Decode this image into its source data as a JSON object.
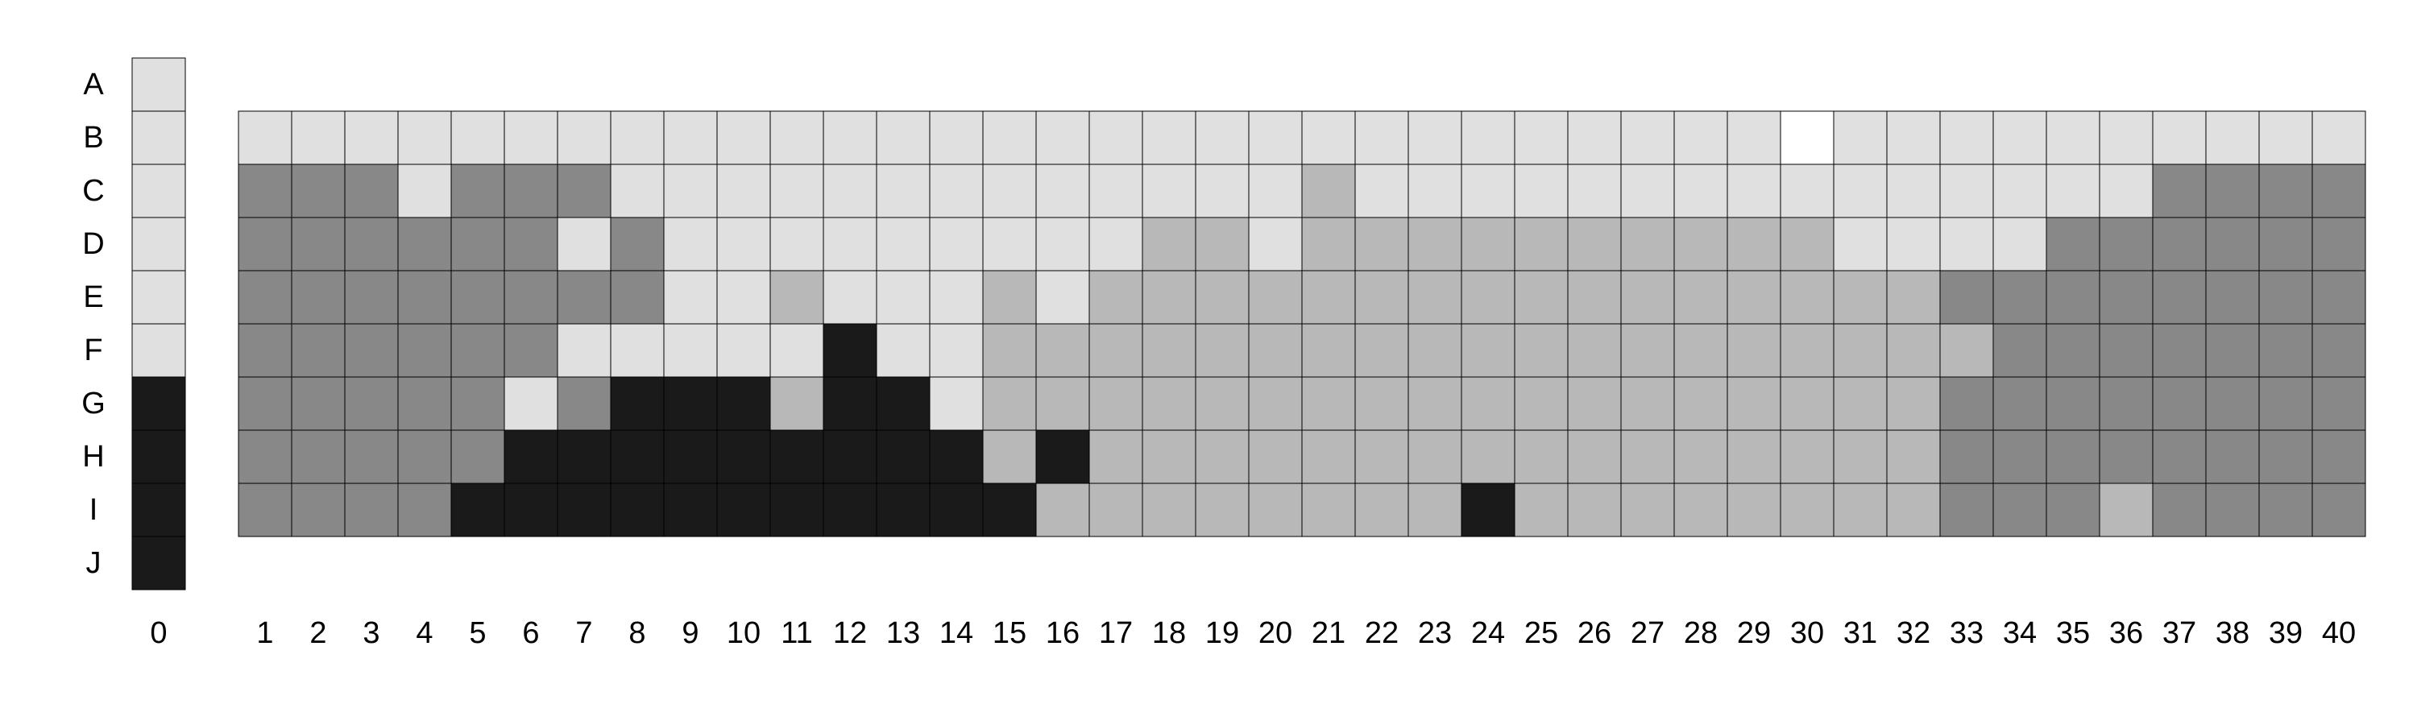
{
  "chart_data": {
    "type": "heatmap",
    "row_labels": [
      "A",
      "B",
      "C",
      "D",
      "E",
      "F",
      "G",
      "H",
      "I",
      "J"
    ],
    "column_labels": [
      "0",
      "1",
      "2",
      "3",
      "4",
      "5",
      "6",
      "7",
      "8",
      "9",
      "10",
      "11",
      "12",
      "13",
      "14",
      "15",
      "16",
      "17",
      "18",
      "19",
      "20",
      "21",
      "22",
      "23",
      "24",
      "25",
      "26",
      "27",
      "28",
      "29",
      "30",
      "31",
      "32",
      "33",
      "34",
      "35",
      "36",
      "37",
      "38",
      "39",
      "40"
    ],
    "levels": {
      "w": "#ffffff",
      "L": "#e0e0e0",
      "M": "#b8b8b8",
      "D": "#888888",
      "K": "#1a1a1a"
    },
    "column_0": [
      "L",
      "L",
      "L",
      "L",
      "L",
      "L",
      "K",
      "K",
      "K",
      "K"
    ],
    "grid_rows": [
      "B",
      "C",
      "D",
      "E",
      "F",
      "G",
      "H",
      "I"
    ],
    "grid_columns_start": 1,
    "grid": [
      "LLLLLLLLLLLLLLLLLLLLLLLLLLLLLwLLLLLLLLLL",
      "DDDLDDDLLLLLLLLLLLLLMLLLLLLLLLLLLLLLDDDD",
      "DDDDDDLDLLLLLLLLLMMLMMMMMMMMMMLLLLDDDDDD",
      "DDDDDDDDLLMLLLMLMMMMMMMMMMMMMMMMDDDDDDDD",
      "DDDDDDLLLLLKLLMMMMMMMMMMMMMMMMMMMDDDDDDD",
      "DDDDDLDKKKMKKLMMMMMMMMMMMMMMMMMMDDDDDDDD",
      "DDDDDKKKKKKKKKMKMMMMMMMMMMMMMMMMDDDDDDDD",
      "DDDDKKKKKKKKKKKMMMMMMMMKMMMMMMMMDDDMDDDD"
    ]
  }
}
